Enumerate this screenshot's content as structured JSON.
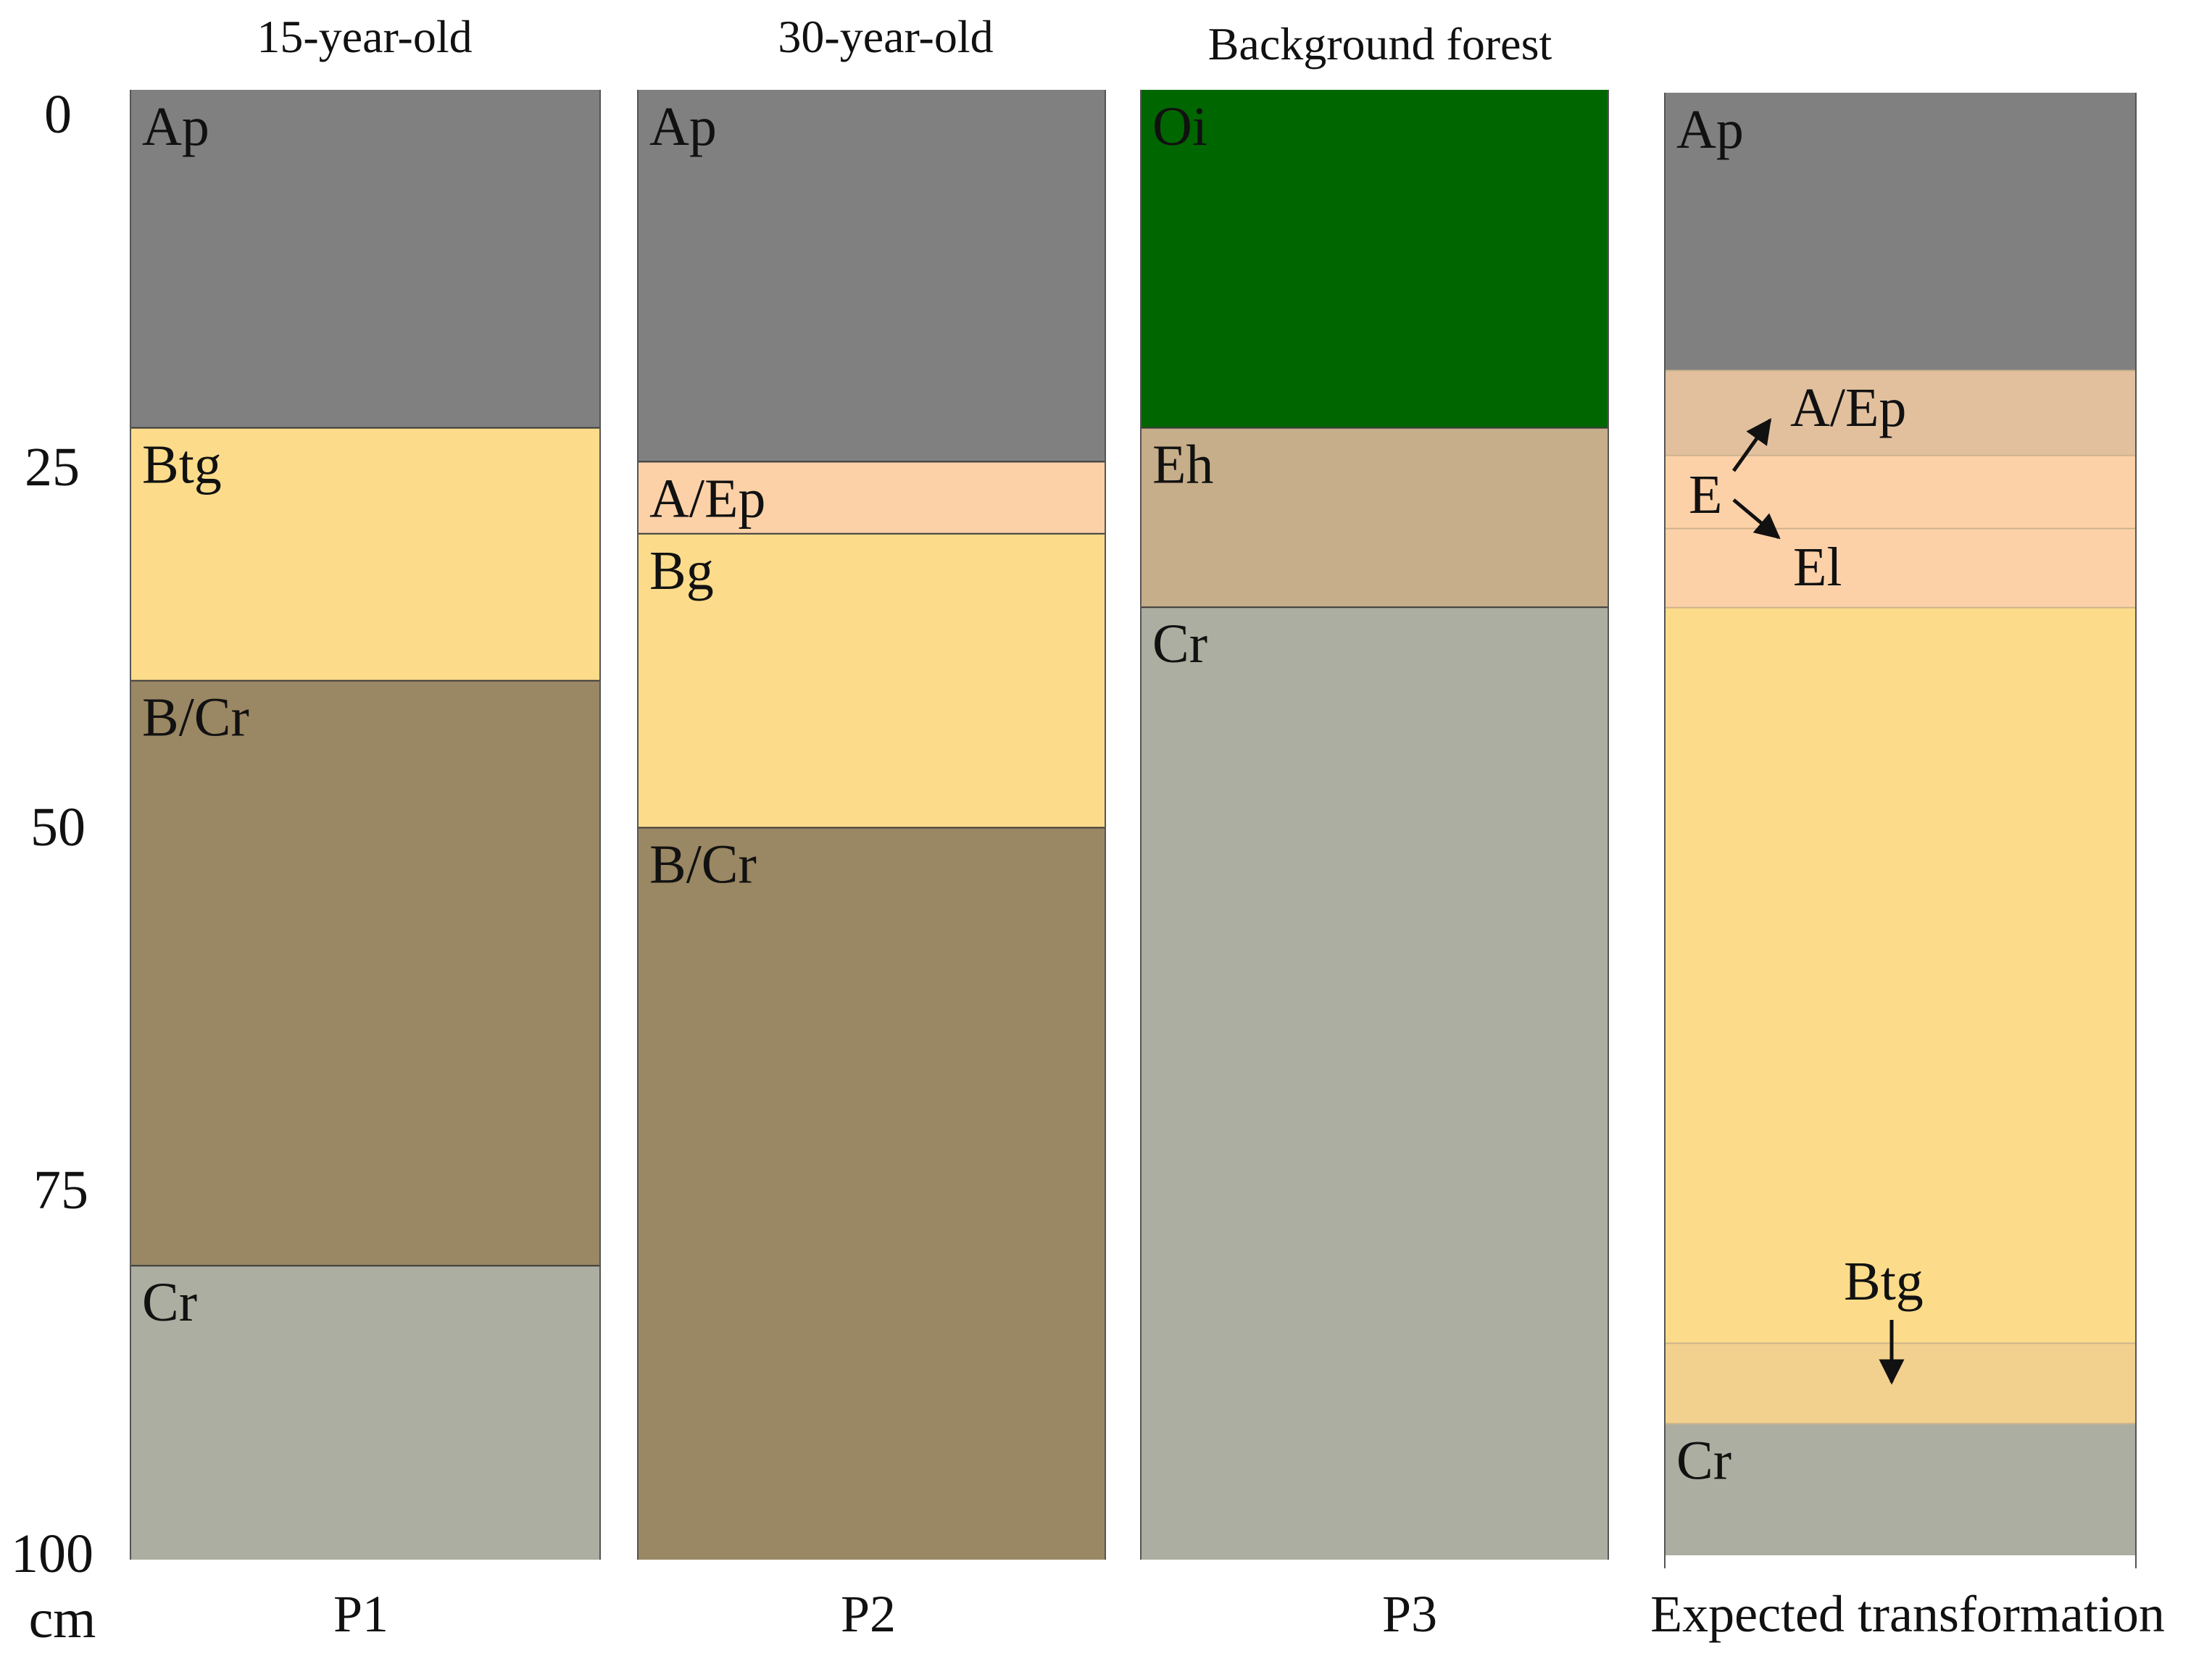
{
  "diagram": {
    "y_axis": {
      "ticks": [
        "0",
        "25",
        "50",
        "75",
        "100"
      ],
      "unit": "cm"
    },
    "profiles": [
      {
        "id": "p1",
        "title": "15-year-old",
        "label": "P1",
        "horizons": [
          {
            "name": "Ap",
            "top_cm": 0,
            "bottom_cm": 23,
            "color": "#808080"
          },
          {
            "name": "Btg",
            "top_cm": 23,
            "bottom_cm": 40.2,
            "color": "#fcdc8a"
          },
          {
            "name": "B/Cr",
            "top_cm": 40.2,
            "bottom_cm": 80,
            "color": "#9a8763"
          },
          {
            "name": "Cr",
            "top_cm": 80,
            "bottom_cm": 100,
            "color": "#abaea0"
          }
        ]
      },
      {
        "id": "p2",
        "title": "30-year-old",
        "label": "P2",
        "horizons": [
          {
            "name": "Ap",
            "top_cm": 0,
            "bottom_cm": 25.3,
            "color": "#808080"
          },
          {
            "name": "A/Ep",
            "top_cm": 25.3,
            "bottom_cm": 30.2,
            "color": "#fdd1a8"
          },
          {
            "name": "Bg",
            "top_cm": 30.2,
            "bottom_cm": 50.2,
            "color": "#fcdc8a"
          },
          {
            "name": "B/Cr",
            "top_cm": 50.2,
            "bottom_cm": 100,
            "color": "#9a8763"
          }
        ]
      },
      {
        "id": "p3",
        "title": "Background forest",
        "label": "P3",
        "horizons": [
          {
            "name": "Oi",
            "top_cm": 0,
            "bottom_cm": 23,
            "color": "#006600"
          },
          {
            "name": "Eh",
            "top_cm": 23,
            "bottom_cm": 35.2,
            "color": "#c6ae8a"
          },
          {
            "name": "Cr",
            "top_cm": 35.2,
            "bottom_cm": 100,
            "color": "#abaea0"
          }
        ]
      },
      {
        "id": "p4",
        "title": "",
        "label": "Expected transformation",
        "horizons": [
          {
            "name": "Ap",
            "top_cm": 0,
            "bottom_cm": 19,
            "color": "#808080"
          },
          {
            "name": "",
            "top_cm": 19,
            "bottom_cm": 24.8,
            "color": "#e2c09e"
          },
          {
            "name": "",
            "top_cm": 24.8,
            "bottom_cm": 29.8,
            "color": "#fdd1a8"
          },
          {
            "name": "",
            "top_cm": 29.8,
            "bottom_cm": 35.2,
            "color": "#fdd1a8"
          },
          {
            "name": "",
            "top_cm": 35.2,
            "bottom_cm": 85.5,
            "color": "#fcdc8a"
          },
          {
            "name": "",
            "top_cm": 85.5,
            "bottom_cm": 91,
            "color": "#f2d18f"
          },
          {
            "name": "Cr",
            "top_cm": 91,
            "bottom_cm": 100,
            "color": "#abaea0"
          }
        ],
        "annotations": {
          "e_source": "E",
          "upper_target": "A/Ep",
          "lower_target": "El",
          "btg": "Btg"
        }
      }
    ]
  }
}
